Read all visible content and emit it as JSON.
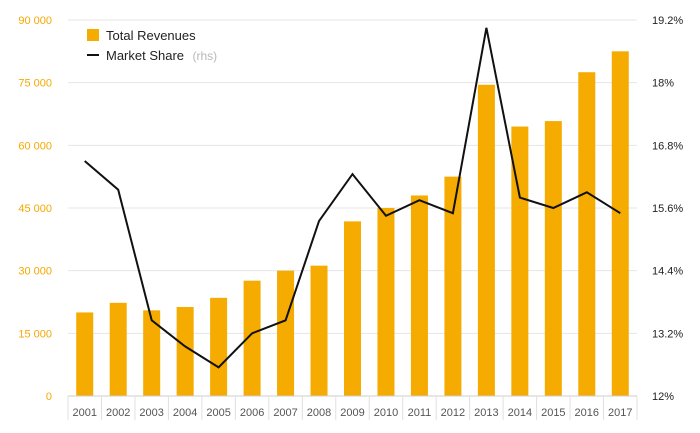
{
  "chart_data": {
    "type": "bar",
    "categories": [
      "2001",
      "2002",
      "2003",
      "2004",
      "2005",
      "2006",
      "2007",
      "2008",
      "2009",
      "2010",
      "2011",
      "2012",
      "2013",
      "2014",
      "2015",
      "2016",
      "2017"
    ],
    "series": [
      {
        "name": "Total Revenues",
        "type": "bar",
        "axis": "left",
        "color": "#f5ab00",
        "values": [
          20000,
          22300,
          20500,
          21300,
          23500,
          27600,
          30000,
          31200,
          41800,
          45000,
          48000,
          52500,
          74500,
          64500,
          65800,
          77500,
          82500
        ]
      },
      {
        "name": "Market Share",
        "type": "line",
        "axis": "right",
        "color": "#111111",
        "values": [
          16.5,
          15.95,
          13.45,
          12.95,
          12.55,
          13.2,
          13.45,
          15.35,
          16.25,
          15.45,
          15.75,
          15.5,
          19.05,
          15.8,
          15.6,
          15.9,
          15.5
        ]
      }
    ],
    "y_left": {
      "ticks": [
        0,
        15000,
        30000,
        45000,
        60000,
        75000,
        90000
      ],
      "tick_labels": [
        "0",
        "15 000",
        "30 000",
        "45 000",
        "60 000",
        "75 000",
        "90 000"
      ],
      "ylim": [
        0,
        90000
      ]
    },
    "y_right": {
      "ticks": [
        12,
        13.2,
        14.4,
        15.6,
        16.8,
        18,
        19.2
      ],
      "tick_labels": [
        "12%",
        "13.2%",
        "14.4%",
        "15.6%",
        "16.8%",
        "18%",
        "19.2%"
      ],
      "ylim": [
        12,
        19.2
      ]
    },
    "legend": {
      "position": "top-left",
      "items": [
        {
          "label": "Total Revenues",
          "note": "",
          "swatch": "bar"
        },
        {
          "label": "Market Share",
          "note": "(rhs)",
          "swatch": "line"
        }
      ]
    },
    "grid": true,
    "title": "",
    "xlabel": "",
    "ylabel": ""
  }
}
